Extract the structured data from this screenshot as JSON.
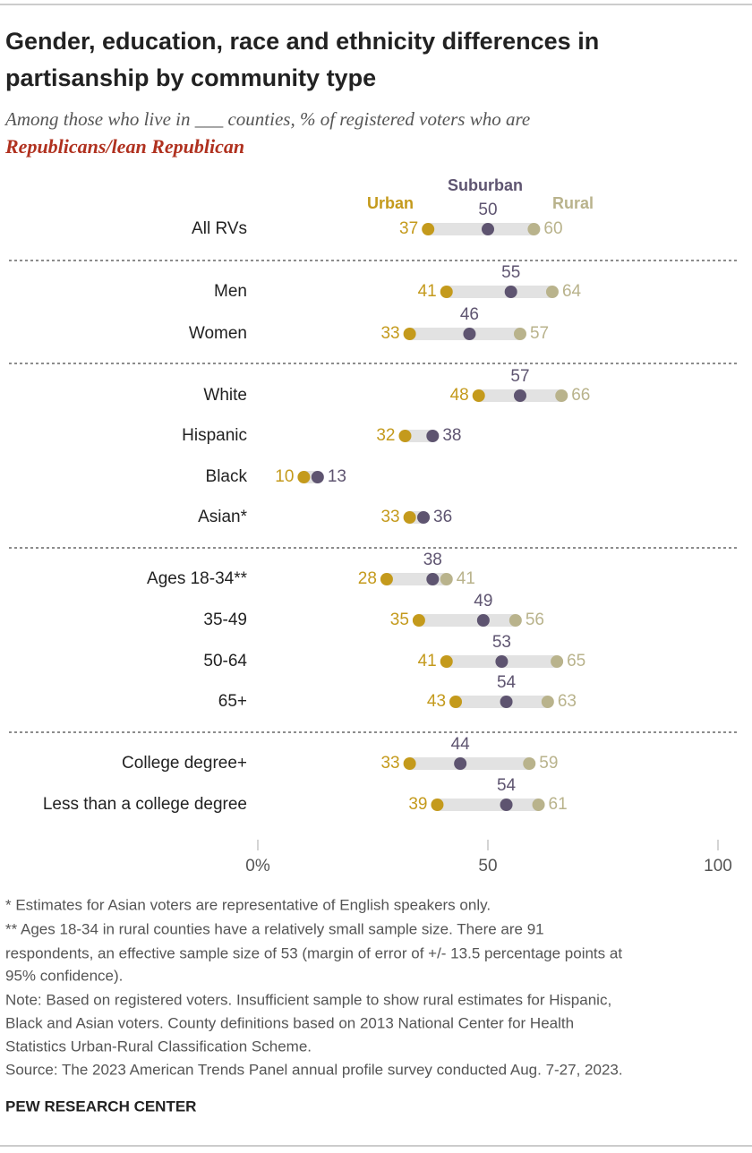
{
  "chart_data": {
    "type": "dot",
    "title_lines": [
      "Gender, education, race and ethnicity differences in",
      "partisanship by community type"
    ],
    "subtitle": "Among those who live in ___ counties, % of registered voters who are",
    "subtitle_highlight": "Republicans/lean Republican",
    "categories": [
      "All RVs",
      "Men",
      "Women",
      "White",
      "Hispanic",
      "Black",
      "Asian*",
      "Ages 18-34**",
      "35-49",
      "50-64",
      "65+",
      "College degree+",
      "Less than a college degree"
    ],
    "series": [
      {
        "name": "Urban",
        "color": "#c49a1c",
        "values": [
          37,
          41,
          33,
          48,
          32,
          10,
          33,
          28,
          35,
          41,
          43,
          33,
          39
        ]
      },
      {
        "name": "Suburban",
        "color": "#5e5470",
        "values": [
          50,
          55,
          46,
          57,
          38,
          13,
          36,
          38,
          49,
          53,
          54,
          44,
          54
        ]
      },
      {
        "name": "Rural",
        "color": "#b9b38c",
        "values": [
          60,
          64,
          57,
          66,
          null,
          null,
          null,
          41,
          56,
          65,
          63,
          59,
          61
        ]
      }
    ],
    "xlim": [
      0,
      100
    ],
    "xticks": [
      {
        "value": 0,
        "label": "0%"
      },
      50,
      100
    ],
    "notes": [
      "* Estimates for Asian voters are representative of English speakers only.",
      "** Ages 18-34 in rural counties have a relatively small sample size. There are 91",
      "respondents, an effective sample size of 53 (margin of error of +/- 13.5 percentage points at",
      "95% confidence).",
      "Note: Based on registered voters. Insufficient sample to show rural estimates for Hispanic,",
      "Black and Asian voters. County definitions based on 2013 National Center for Health",
      "Statistics Urban-Rural Classification Scheme.",
      "Source: The 2023 American Trends Panel annual profile survey conducted Aug. 7-27, 2023."
    ],
    "source_org": "PEW RESEARCH CENTER"
  }
}
